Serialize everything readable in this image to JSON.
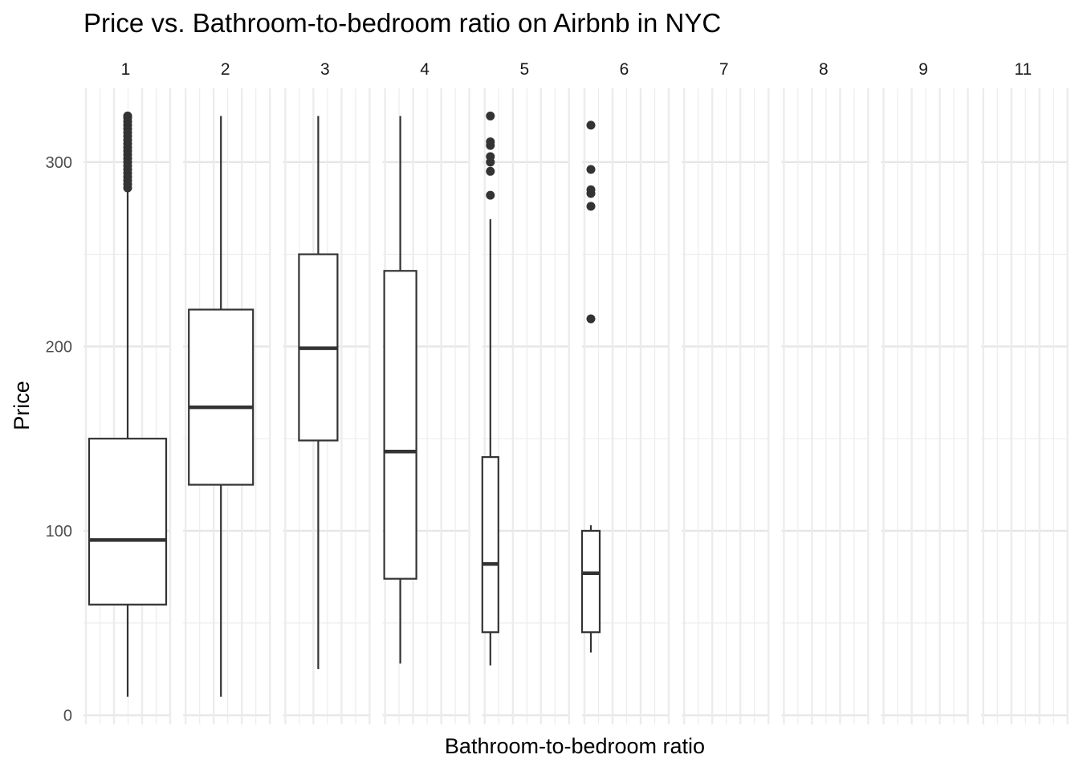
{
  "chart_data": {
    "type": "boxplot",
    "title": "Price vs. Bathroom-to-bedroom ratio on Airbnb in NYC",
    "xlabel": "Bathroom-to-bedroom ratio",
    "ylabel": "Price",
    "ylim": [
      -5,
      340
    ],
    "yticks": [
      0,
      100,
      200,
      300
    ],
    "grid": true,
    "legend": "none",
    "facets": [
      {
        "label": "1",
        "box": {
          "whisker_low": 10,
          "q1": 60,
          "median": 95,
          "q3": 150,
          "whisker_high": 285
        },
        "outliers": [
          286,
          288,
          290,
          292,
          294,
          296,
          298,
          300,
          302,
          304,
          306,
          308,
          310,
          312,
          314,
          316,
          318,
          320,
          322,
          324,
          325
        ]
      },
      {
        "label": "2",
        "box": {
          "whisker_low": 10,
          "q1": 125,
          "median": 167,
          "q3": 220,
          "whisker_high": 325
        },
        "outliers": []
      },
      {
        "label": "3",
        "box": {
          "whisker_low": 25,
          "q1": 149,
          "median": 199,
          "q3": 250,
          "whisker_high": 325
        },
        "outliers": []
      },
      {
        "label": "4",
        "box": {
          "whisker_low": 28,
          "q1": 74,
          "median": 143,
          "q3": 241,
          "whisker_high": 325
        },
        "outliers": []
      },
      {
        "label": "5",
        "box": {
          "whisker_low": 27,
          "q1": 45,
          "median": 82,
          "q3": 140,
          "whisker_high": 269
        },
        "outliers": [
          282,
          295,
          300,
          303,
          309,
          311,
          325
        ]
      },
      {
        "label": "6",
        "box": {
          "whisker_low": 34,
          "q1": 45,
          "median": 77,
          "q3": 100,
          "whisker_high": 103
        },
        "outliers": [
          215,
          276,
          283,
          285,
          296,
          320
        ]
      },
      {
        "label": "7",
        "box": null,
        "outliers": []
      },
      {
        "label": "8",
        "box": null,
        "outliers": []
      },
      {
        "label": "9",
        "box": null,
        "outliers": []
      },
      {
        "label": "11",
        "box": null,
        "outliers": []
      }
    ]
  }
}
